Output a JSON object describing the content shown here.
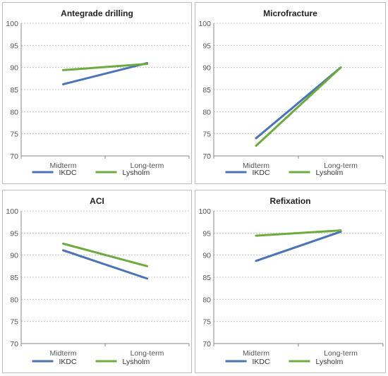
{
  "colors": {
    "IKDC": "#4a73b8",
    "Lysholm": "#6eab3f"
  },
  "chart_data": [
    {
      "type": "line",
      "title": "Antegrade drilling",
      "categories": [
        "Midterm",
        "Long-term"
      ],
      "ylim": [
        70,
        100
      ],
      "yticks": [
        "70",
        "75",
        "80",
        "85",
        "90",
        "95",
        "100"
      ],
      "grid": true,
      "legend": "bottom",
      "series": [
        {
          "name": "IKDC",
          "values": [
            86.2,
            91.0
          ]
        },
        {
          "name": "Lysholm",
          "values": [
            89.4,
            90.8
          ]
        }
      ]
    },
    {
      "type": "line",
      "title": "Microfracture",
      "categories": [
        "Midterm",
        "Long-term"
      ],
      "ylim": [
        70,
        100
      ],
      "yticks": [
        "70",
        "75",
        "80",
        "85",
        "90",
        "95",
        "100"
      ],
      "grid": true,
      "legend": "bottom",
      "series": [
        {
          "name": "IKDC",
          "values": [
            74.0,
            90.0
          ]
        },
        {
          "name": "Lysholm",
          "values": [
            72.3,
            90.0
          ]
        }
      ]
    },
    {
      "type": "line",
      "title": "ACI",
      "categories": [
        "Midterm",
        "Long-term"
      ],
      "ylim": [
        70,
        100
      ],
      "yticks": [
        "70",
        "75",
        "80",
        "85",
        "90",
        "95",
        "100"
      ],
      "grid": true,
      "legend": "bottom",
      "series": [
        {
          "name": "IKDC",
          "values": [
            91.1,
            84.7
          ]
        },
        {
          "name": "Lysholm",
          "values": [
            92.6,
            87.5
          ]
        }
      ]
    },
    {
      "type": "line",
      "title": "Refixation",
      "categories": [
        "Midterm",
        "Long-term"
      ],
      "ylim": [
        70,
        100
      ],
      "yticks": [
        "70",
        "75",
        "80",
        "85",
        "90",
        "95",
        "100"
      ],
      "grid": true,
      "legend": "bottom",
      "series": [
        {
          "name": "IKDC",
          "values": [
            88.7,
            95.3
          ]
        },
        {
          "name": "Lysholm",
          "values": [
            94.4,
            95.6
          ]
        }
      ]
    }
  ]
}
